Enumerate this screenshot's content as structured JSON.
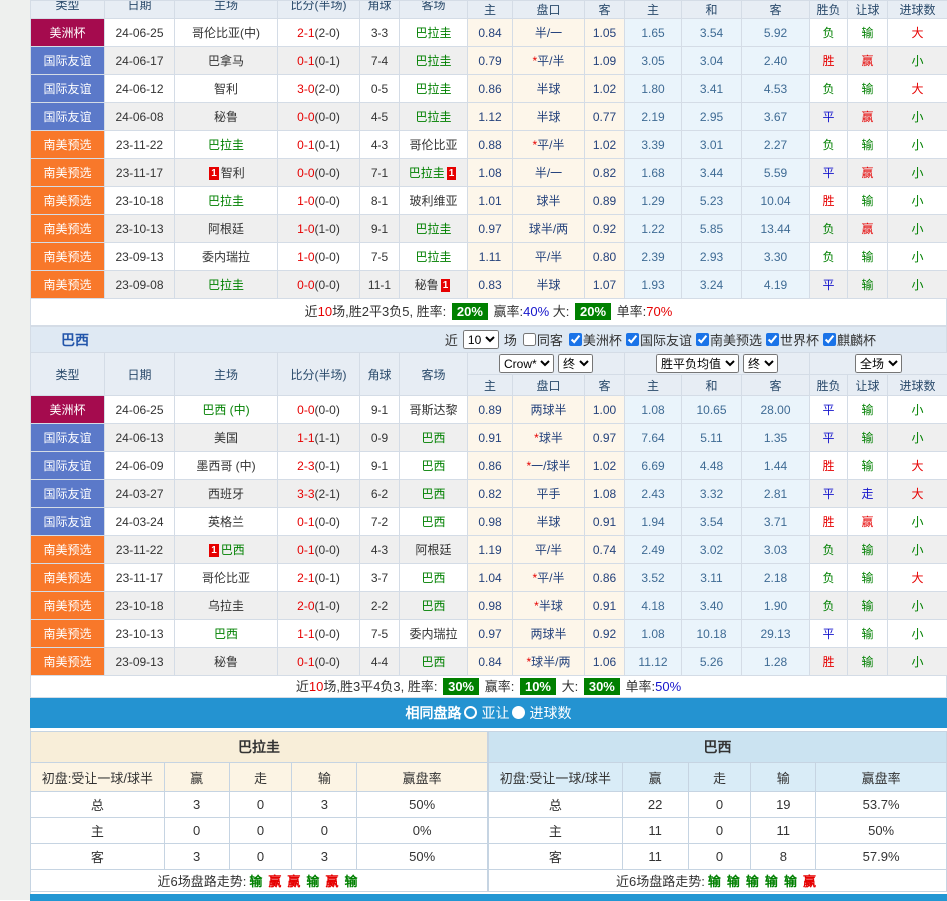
{
  "colors": {
    "league_copa_america": "#a50b4e",
    "league_friendly": "#5b79c9",
    "league_qualifier": "#f8782a",
    "percent_badge_green": "#008000",
    "bar_blue": "#2493d1",
    "text_red": "#e60000",
    "text_green": "#008000",
    "text_blue": "#1515cc"
  },
  "match_columns": [
    "类型",
    "日期",
    "主场",
    "比分(半场)",
    "角球",
    "客场",
    "主",
    "盘口",
    "客",
    "主",
    "和",
    "客",
    "胜负",
    "让球",
    "进球数"
  ],
  "paraguay_table": {
    "rows": [
      {
        "t": "美洲杯",
        "d": "24-06-25",
        "h": "哥伦比亚(中)",
        "hg": false,
        "hb": false,
        "s": "2-1",
        "sh": "(2-0)",
        "c": "3-3",
        "a": "巴拉圭",
        "ag": true,
        "ab": false,
        "o": [
          "0.84",
          "半/一",
          "1.05"
        ],
        "st": false,
        "e": [
          "1.65",
          "3.54",
          "5.92"
        ],
        "r": [
          "负",
          "g"
        ],
        "l": [
          "输",
          "g"
        ],
        "n": [
          "大",
          "r"
        ]
      },
      {
        "t": "国际友谊",
        "d": "24-06-17",
        "h": "巴拿马",
        "hg": false,
        "hb": false,
        "s": "0-1",
        "sh": "(0-1)",
        "c": "7-4",
        "a": "巴拉圭",
        "ag": true,
        "ab": false,
        "o": [
          "0.79",
          "平/半",
          "1.09"
        ],
        "st": true,
        "e": [
          "3.05",
          "3.04",
          "2.40"
        ],
        "r": [
          "胜",
          "r"
        ],
        "l": [
          "赢",
          "r"
        ],
        "n": [
          "小",
          "g"
        ]
      },
      {
        "t": "国际友谊",
        "d": "24-06-12",
        "h": "智利",
        "hg": false,
        "hb": false,
        "s": "3-0",
        "sh": "(2-0)",
        "c": "0-5",
        "a": "巴拉圭",
        "ag": true,
        "ab": false,
        "o": [
          "0.86",
          "半球",
          "1.02"
        ],
        "st": false,
        "e": [
          "1.80",
          "3.41",
          "4.53"
        ],
        "r": [
          "负",
          "g"
        ],
        "l": [
          "输",
          "g"
        ],
        "n": [
          "大",
          "r"
        ]
      },
      {
        "t": "国际友谊",
        "d": "24-06-08",
        "h": "秘鲁",
        "hg": false,
        "hb": false,
        "s": "0-0",
        "sh": "(0-0)",
        "c": "4-5",
        "a": "巴拉圭",
        "ag": true,
        "ab": false,
        "o": [
          "1.12",
          "半球",
          "0.77"
        ],
        "st": false,
        "e": [
          "2.19",
          "2.95",
          "3.67"
        ],
        "r": [
          "平",
          "b"
        ],
        "l": [
          "赢",
          "r"
        ],
        "n": [
          "小",
          "g"
        ]
      },
      {
        "t": "南美预选",
        "d": "23-11-22",
        "h": "巴拉圭",
        "hg": true,
        "hb": false,
        "s": "0-1",
        "sh": "(0-1)",
        "c": "4-3",
        "a": "哥伦比亚",
        "ag": false,
        "ab": false,
        "o": [
          "0.88",
          "平/半",
          "1.02"
        ],
        "st": true,
        "e": [
          "3.39",
          "3.01",
          "2.27"
        ],
        "r": [
          "负",
          "g"
        ],
        "l": [
          "输",
          "g"
        ],
        "n": [
          "小",
          "g"
        ]
      },
      {
        "t": "南美预选",
        "d": "23-11-17",
        "h": "智利",
        "hg": false,
        "hb": true,
        "s": "0-0",
        "sh": "(0-0)",
        "c": "7-1",
        "a": "巴拉圭",
        "ag": true,
        "ab": true,
        "o": [
          "1.08",
          "半/一",
          "0.82"
        ],
        "st": false,
        "e": [
          "1.68",
          "3.44",
          "5.59"
        ],
        "r": [
          "平",
          "b"
        ],
        "l": [
          "赢",
          "r"
        ],
        "n": [
          "小",
          "g"
        ]
      },
      {
        "t": "南美预选",
        "d": "23-10-18",
        "h": "巴拉圭",
        "hg": true,
        "hb": false,
        "s": "1-0",
        "sh": "(0-0)",
        "c": "8-1",
        "a": "玻利维亚",
        "ag": false,
        "ab": false,
        "o": [
          "1.01",
          "球半",
          "0.89"
        ],
        "st": false,
        "e": [
          "1.29",
          "5.23",
          "10.04"
        ],
        "r": [
          "胜",
          "r"
        ],
        "l": [
          "输",
          "g"
        ],
        "n": [
          "小",
          "g"
        ]
      },
      {
        "t": "南美预选",
        "d": "23-10-13",
        "h": "阿根廷",
        "hg": false,
        "hb": false,
        "s": "1-0",
        "sh": "(1-0)",
        "c": "9-1",
        "a": "巴拉圭",
        "ag": true,
        "ab": false,
        "o": [
          "0.97",
          "球半/两",
          "0.92"
        ],
        "st": false,
        "e": [
          "1.22",
          "5.85",
          "13.44"
        ],
        "r": [
          "负",
          "g"
        ],
        "l": [
          "赢",
          "r"
        ],
        "n": [
          "小",
          "g"
        ]
      },
      {
        "t": "南美预选",
        "d": "23-09-13",
        "h": "委内瑞拉",
        "hg": false,
        "hb": false,
        "s": "1-0",
        "sh": "(0-0)",
        "c": "7-5",
        "a": "巴拉圭",
        "ag": true,
        "ab": false,
        "o": [
          "1.11",
          "平/半",
          "0.80"
        ],
        "st": false,
        "e": [
          "2.39",
          "2.93",
          "3.30"
        ],
        "r": [
          "负",
          "g"
        ],
        "l": [
          "输",
          "g"
        ],
        "n": [
          "小",
          "g"
        ]
      },
      {
        "t": "南美预选",
        "d": "23-09-08",
        "h": "巴拉圭",
        "hg": true,
        "hb": false,
        "s": "0-0",
        "sh": "(0-0)",
        "c": "11-1",
        "a": "秘鲁",
        "ag": false,
        "ab": true,
        "o": [
          "0.83",
          "半球",
          "1.07"
        ],
        "st": false,
        "e": [
          "1.93",
          "3.24",
          "4.19"
        ],
        "r": [
          "平",
          "b"
        ],
        "l": [
          "输",
          "g"
        ],
        "n": [
          "小",
          "g"
        ]
      }
    ]
  },
  "summary1": [
    {
      "t": "近"
    },
    {
      "t": "10",
      "c": "r"
    },
    {
      "t": "场,胜2平3负5, 胜率: "
    },
    {
      "t": "20%",
      "b": true
    },
    {
      "t": " 赢率:"
    },
    {
      "t": "40%",
      "c": "b"
    },
    {
      "t": " 大: "
    },
    {
      "t": "20%",
      "b": true
    },
    {
      "t": " 单率:"
    },
    {
      "t": "70%",
      "c": "r"
    }
  ],
  "brazil_bar": {
    "team": "巴西",
    "near": "近",
    "select_value": "10",
    "games_label": "场",
    "same_away": "同客",
    "filters": [
      {
        "label": "美洲杯",
        "checked": true
      },
      {
        "label": "国际友谊",
        "checked": true
      },
      {
        "label": "南美预选",
        "checked": true
      },
      {
        "label": "世界杯",
        "checked": true
      },
      {
        "label": "麒麟杯",
        "checked": true
      }
    ]
  },
  "header_selects": {
    "asian": [
      "Crow*",
      "终"
    ],
    "euro": [
      "胜平负均值",
      "终"
    ],
    "scope": [
      "全场"
    ]
  },
  "brazil_table": {
    "rows": [
      {
        "t": "美洲杯",
        "d": "24-06-25",
        "h": "巴西 (中)",
        "hg": true,
        "hb": false,
        "s": "0-0",
        "sh": "(0-0)",
        "c": "9-1",
        "a": "哥斯达黎",
        "ag": false,
        "ab": false,
        "o": [
          "0.89",
          "两球半",
          "1.00"
        ],
        "st": false,
        "e": [
          "1.08",
          "10.65",
          "28.00"
        ],
        "r": [
          "平",
          "b"
        ],
        "l": [
          "输",
          "g"
        ],
        "n": [
          "小",
          "g"
        ]
      },
      {
        "t": "国际友谊",
        "d": "24-06-13",
        "h": "美国",
        "hg": false,
        "hb": false,
        "s": "1-1",
        "sh": "(1-1)",
        "c": "0-9",
        "a": "巴西",
        "ag": true,
        "ab": false,
        "o": [
          "0.91",
          "球半",
          "0.97"
        ],
        "st": true,
        "e": [
          "7.64",
          "5.11",
          "1.35"
        ],
        "r": [
          "平",
          "b"
        ],
        "l": [
          "输",
          "g"
        ],
        "n": [
          "小",
          "g"
        ]
      },
      {
        "t": "国际友谊",
        "d": "24-06-09",
        "h": "墨西哥 (中)",
        "hg": false,
        "hb": false,
        "s": "2-3",
        "sh": "(0-1)",
        "c": "9-1",
        "a": "巴西",
        "ag": true,
        "ab": false,
        "o": [
          "0.86",
          "一/球半",
          "1.02"
        ],
        "st": true,
        "e": [
          "6.69",
          "4.48",
          "1.44"
        ],
        "r": [
          "胜",
          "r"
        ],
        "l": [
          "输",
          "g"
        ],
        "n": [
          "大",
          "r"
        ]
      },
      {
        "t": "国际友谊",
        "d": "24-03-27",
        "h": "西班牙",
        "hg": false,
        "hb": false,
        "s": "3-3",
        "sh": "(2-1)",
        "c": "6-2",
        "a": "巴西",
        "ag": true,
        "ab": false,
        "o": [
          "0.82",
          "平手",
          "1.08"
        ],
        "st": false,
        "e": [
          "2.43",
          "3.32",
          "2.81"
        ],
        "r": [
          "平",
          "b"
        ],
        "l": [
          "走",
          "b"
        ],
        "n": [
          "大",
          "r"
        ]
      },
      {
        "t": "国际友谊",
        "d": "24-03-24",
        "h": "英格兰",
        "hg": false,
        "hb": false,
        "s": "0-1",
        "sh": "(0-0)",
        "c": "7-2",
        "a": "巴西",
        "ag": true,
        "ab": false,
        "o": [
          "0.98",
          "半球",
          "0.91"
        ],
        "st": false,
        "e": [
          "1.94",
          "3.54",
          "3.71"
        ],
        "r": [
          "胜",
          "r"
        ],
        "l": [
          "赢",
          "r"
        ],
        "n": [
          "小",
          "g"
        ]
      },
      {
        "t": "南美预选",
        "d": "23-11-22",
        "h": "巴西",
        "hg": true,
        "hb": true,
        "s": "0-1",
        "sh": "(0-0)",
        "c": "4-3",
        "a": "阿根廷",
        "ag": false,
        "ab": false,
        "o": [
          "1.19",
          "平/半",
          "0.74"
        ],
        "st": false,
        "e": [
          "2.49",
          "3.02",
          "3.03"
        ],
        "r": [
          "负",
          "g"
        ],
        "l": [
          "输",
          "g"
        ],
        "n": [
          "小",
          "g"
        ]
      },
      {
        "t": "南美预选",
        "d": "23-11-17",
        "h": "哥伦比亚",
        "hg": false,
        "hb": false,
        "s": "2-1",
        "sh": "(0-1)",
        "c": "3-7",
        "a": "巴西",
        "ag": true,
        "ab": false,
        "o": [
          "1.04",
          "平/半",
          "0.86"
        ],
        "st": true,
        "e": [
          "3.52",
          "3.11",
          "2.18"
        ],
        "r": [
          "负",
          "g"
        ],
        "l": [
          "输",
          "g"
        ],
        "n": [
          "大",
          "r"
        ]
      },
      {
        "t": "南美预选",
        "d": "23-10-18",
        "h": "乌拉圭",
        "hg": false,
        "hb": false,
        "s": "2-0",
        "sh": "(1-0)",
        "c": "2-2",
        "a": "巴西",
        "ag": true,
        "ab": false,
        "o": [
          "0.98",
          "半球",
          "0.91"
        ],
        "st": true,
        "e": [
          "4.18",
          "3.40",
          "1.90"
        ],
        "r": [
          "负",
          "g"
        ],
        "l": [
          "输",
          "g"
        ],
        "n": [
          "小",
          "g"
        ]
      },
      {
        "t": "南美预选",
        "d": "23-10-13",
        "h": "巴西",
        "hg": true,
        "hb": false,
        "s": "1-1",
        "sh": "(0-0)",
        "c": "7-5",
        "a": "委内瑞拉",
        "ag": false,
        "ab": false,
        "o": [
          "0.97",
          "两球半",
          "0.92"
        ],
        "st": false,
        "e": [
          "1.08",
          "10.18",
          "29.13"
        ],
        "r": [
          "平",
          "b"
        ],
        "l": [
          "输",
          "g"
        ],
        "n": [
          "小",
          "g"
        ]
      },
      {
        "t": "南美预选",
        "d": "23-09-13",
        "h": "秘鲁",
        "hg": false,
        "hb": false,
        "s": "0-1",
        "sh": "(0-0)",
        "c": "4-4",
        "a": "巴西",
        "ag": true,
        "ab": false,
        "o": [
          "0.84",
          "球半/两",
          "1.06"
        ],
        "st": true,
        "e": [
          "11.12",
          "5.26",
          "1.28"
        ],
        "r": [
          "胜",
          "r"
        ],
        "l": [
          "输",
          "g"
        ],
        "n": [
          "小",
          "g"
        ]
      }
    ]
  },
  "summary2": [
    {
      "t": "近"
    },
    {
      "t": "10",
      "c": "r"
    },
    {
      "t": "场,胜3平4负3, 胜率: "
    },
    {
      "t": "30%",
      "b": true
    },
    {
      "t": " 赢率: "
    },
    {
      "t": "10%",
      "b": true
    },
    {
      "t": " 大: "
    },
    {
      "t": "30%",
      "b": true
    },
    {
      "t": " 单率:"
    },
    {
      "t": "50%",
      "c": "b"
    }
  ],
  "same_bar": {
    "title": "相同盘路",
    "options": [
      {
        "label": "亚让",
        "selected": false
      },
      {
        "label": "进球数",
        "selected": true
      }
    ]
  },
  "compare": {
    "left": {
      "title": "巴拉圭",
      "head": [
        "初盘:受让一球/球半",
        "赢",
        "走",
        "输",
        "赢盘率"
      ],
      "rows": [
        [
          "总",
          "3",
          "0",
          "3",
          "50%"
        ],
        [
          "主",
          "0",
          "0",
          "0",
          "0%"
        ],
        [
          "客",
          "3",
          "0",
          "3",
          "50%"
        ]
      ],
      "trend_label": "近6场盘路走势:",
      "trend": [
        [
          "输",
          "g"
        ],
        [
          "赢",
          "r"
        ],
        [
          "赢",
          "r"
        ],
        [
          "输",
          "g"
        ],
        [
          "赢",
          "r"
        ],
        [
          "输",
          "g"
        ]
      ]
    },
    "right": {
      "title": "巴西",
      "head": [
        "初盘:受让一球/球半",
        "赢",
        "走",
        "输",
        "赢盘率"
      ],
      "rows": [
        [
          "总",
          "22",
          "0",
          "19",
          "53.7%"
        ],
        [
          "主",
          "11",
          "0",
          "11",
          "50%"
        ],
        [
          "客",
          "11",
          "0",
          "8",
          "57.9%"
        ]
      ],
      "trend_label": "近6场盘路走势:",
      "trend": [
        [
          "输",
          "g"
        ],
        [
          "输",
          "g"
        ],
        [
          "输",
          "g"
        ],
        [
          "输",
          "g"
        ],
        [
          "输",
          "g"
        ],
        [
          "赢",
          "r"
        ]
      ]
    }
  }
}
